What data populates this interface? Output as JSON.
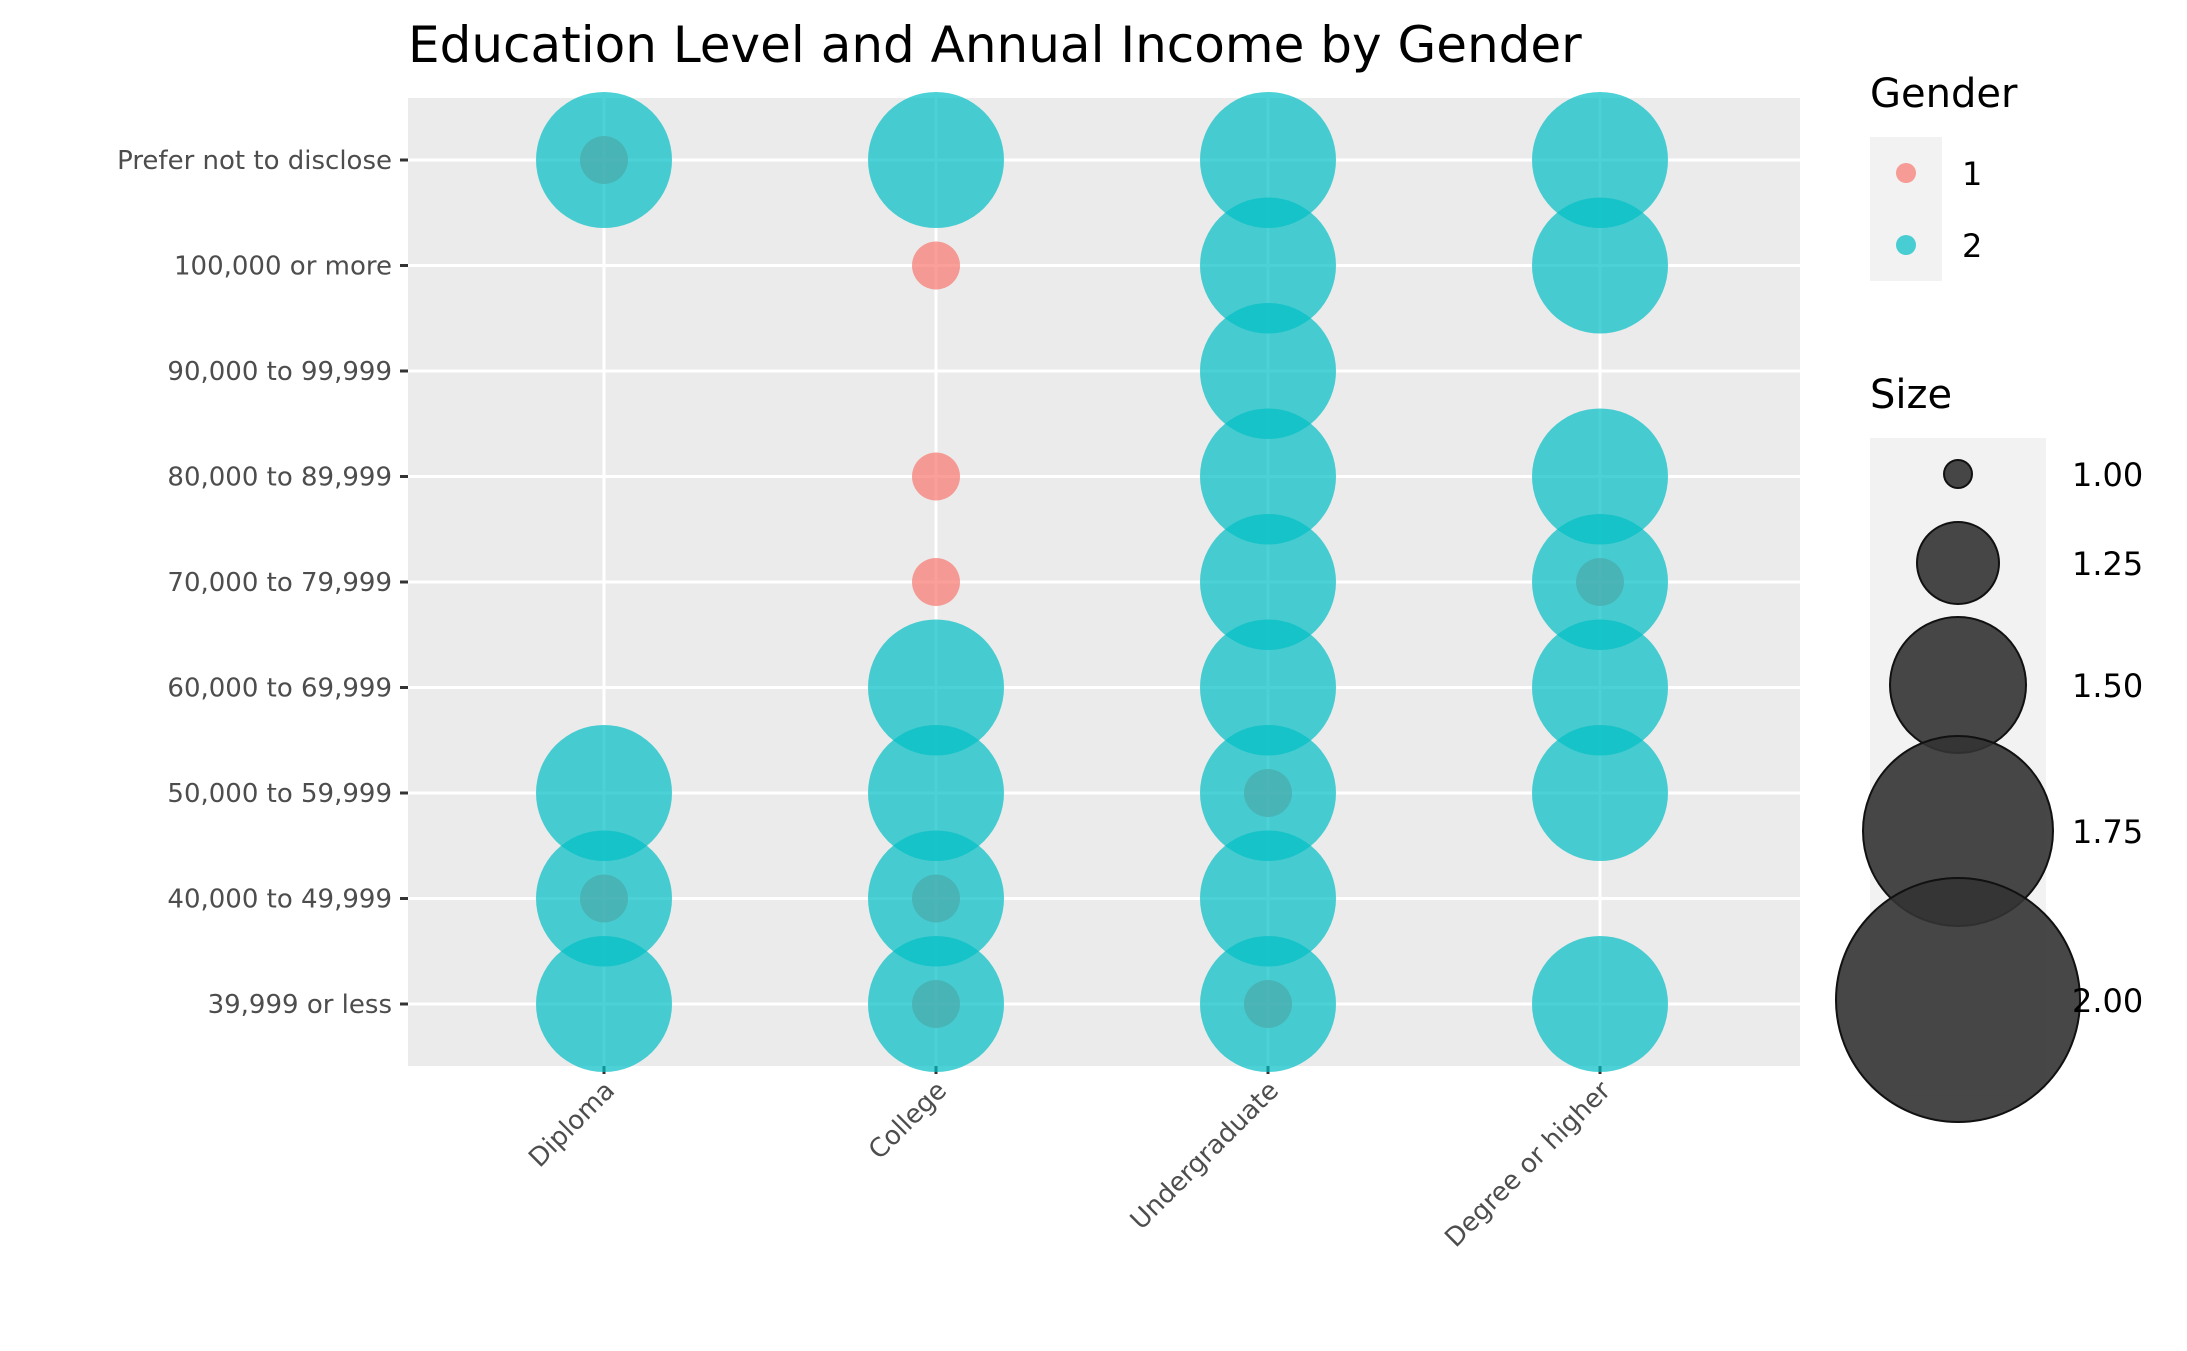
{
  "chart_data": {
    "type": "scatter",
    "title": "Education Level and Annual Income by Gender",
    "xlabel": "",
    "ylabel": "",
    "x_categories": [
      "Diploma",
      "College",
      "Undergraduate",
      "Degree or higher"
    ],
    "y_categories": [
      "39,999 or less",
      "40,000 to 49,999",
      "50,000 to 59,999",
      "60,000 to 69,999",
      "70,000 to 79,999",
      "80,000 to 89,999",
      "90,000 to 99,999",
      "100,000 or more",
      "Prefer not to disclose"
    ],
    "grid": true,
    "legend_position": "right",
    "colors": {
      "1": "#F8766D",
      "2": "#00BFC4"
    },
    "size_legend": {
      "title": "Size",
      "values": [
        1.0,
        1.25,
        1.5,
        1.75,
        2.0
      ],
      "labels": [
        "1.00",
        "1.25",
        "1.50",
        "1.75",
        "2.00"
      ]
    },
    "color_legend": {
      "title": "Gender",
      "labels": [
        "1",
        "2"
      ]
    },
    "series": [
      {
        "name": "1",
        "points": [
          {
            "x": "Diploma",
            "y": "Prefer not to disclose",
            "size": 1
          },
          {
            "x": "Diploma",
            "y": "40,000 to 49,999",
            "size": 1
          },
          {
            "x": "College",
            "y": "100,000 or more",
            "size": 1
          },
          {
            "x": "College",
            "y": "80,000 to 89,999",
            "size": 1
          },
          {
            "x": "College",
            "y": "70,000 to 79,999",
            "size": 1
          },
          {
            "x": "College",
            "y": "40,000 to 49,999",
            "size": 1
          },
          {
            "x": "College",
            "y": "39,999 or less",
            "size": 1
          },
          {
            "x": "Undergraduate",
            "y": "50,000 to 59,999",
            "size": 1
          },
          {
            "x": "Undergraduate",
            "y": "39,999 or less",
            "size": 1
          },
          {
            "x": "Degree or higher",
            "y": "70,000 to 79,999",
            "size": 1
          }
        ]
      },
      {
        "name": "2",
        "points": [
          {
            "x": "Diploma",
            "y": "Prefer not to disclose",
            "size": 2
          },
          {
            "x": "Diploma",
            "y": "50,000 to 59,999",
            "size": 2
          },
          {
            "x": "Diploma",
            "y": "40,000 to 49,999",
            "size": 2
          },
          {
            "x": "Diploma",
            "y": "39,999 or less",
            "size": 2
          },
          {
            "x": "College",
            "y": "Prefer not to disclose",
            "size": 2
          },
          {
            "x": "College",
            "y": "60,000 to 69,999",
            "size": 2
          },
          {
            "x": "College",
            "y": "50,000 to 59,999",
            "size": 2
          },
          {
            "x": "College",
            "y": "40,000 to 49,999",
            "size": 2
          },
          {
            "x": "College",
            "y": "39,999 or less",
            "size": 2
          },
          {
            "x": "Undergraduate",
            "y": "Prefer not to disclose",
            "size": 2
          },
          {
            "x": "Undergraduate",
            "y": "100,000 or more",
            "size": 2
          },
          {
            "x": "Undergraduate",
            "y": "90,000 to 99,999",
            "size": 2
          },
          {
            "x": "Undergraduate",
            "y": "80,000 to 89,999",
            "size": 2
          },
          {
            "x": "Undergraduate",
            "y": "70,000 to 79,999",
            "size": 2
          },
          {
            "x": "Undergraduate",
            "y": "60,000 to 69,999",
            "size": 2
          },
          {
            "x": "Undergraduate",
            "y": "50,000 to 59,999",
            "size": 2
          },
          {
            "x": "Undergraduate",
            "y": "40,000 to 49,999",
            "size": 2
          },
          {
            "x": "Undergraduate",
            "y": "39,999 or less",
            "size": 2
          },
          {
            "x": "Degree or higher",
            "y": "Prefer not to disclose",
            "size": 2
          },
          {
            "x": "Degree or higher",
            "y": "100,000 or more",
            "size": 2
          },
          {
            "x": "Degree or higher",
            "y": "80,000 to 89,999",
            "size": 2
          },
          {
            "x": "Degree or higher",
            "y": "70,000 to 79,999",
            "size": 2
          },
          {
            "x": "Degree or higher",
            "y": "60,000 to 69,999",
            "size": 2
          },
          {
            "x": "Degree or higher",
            "y": "50,000 to 59,999",
            "size": 2
          },
          {
            "x": "Degree or higher",
            "y": "39,999 or less",
            "size": 2
          }
        ]
      }
    ]
  }
}
